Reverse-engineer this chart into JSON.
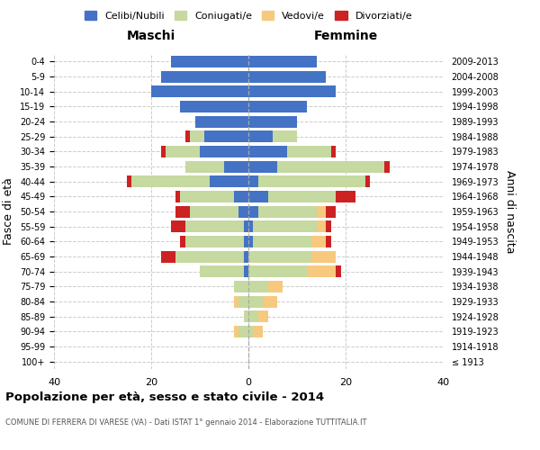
{
  "age_groups": [
    "100+",
    "95-99",
    "90-94",
    "85-89",
    "80-84",
    "75-79",
    "70-74",
    "65-69",
    "60-64",
    "55-59",
    "50-54",
    "45-49",
    "40-44",
    "35-39",
    "30-34",
    "25-29",
    "20-24",
    "15-19",
    "10-14",
    "5-9",
    "0-4"
  ],
  "birth_years": [
    "≤ 1913",
    "1914-1918",
    "1919-1923",
    "1924-1928",
    "1929-1933",
    "1934-1938",
    "1939-1943",
    "1944-1948",
    "1949-1953",
    "1954-1958",
    "1959-1963",
    "1964-1968",
    "1969-1973",
    "1974-1978",
    "1979-1983",
    "1984-1988",
    "1989-1993",
    "1994-1998",
    "1999-2003",
    "2004-2008",
    "2009-2013"
  ],
  "maschi": {
    "celibe": [
      0,
      0,
      0,
      0,
      0,
      0,
      1,
      1,
      1,
      1,
      2,
      3,
      8,
      5,
      10,
      9,
      11,
      14,
      20,
      18,
      16
    ],
    "coniugato": [
      0,
      0,
      2,
      1,
      2,
      3,
      9,
      14,
      12,
      12,
      10,
      11,
      16,
      8,
      7,
      3,
      0,
      0,
      0,
      0,
      0
    ],
    "vedovo": [
      0,
      0,
      1,
      0,
      1,
      0,
      0,
      0,
      0,
      0,
      0,
      0,
      0,
      0,
      0,
      0,
      0,
      0,
      0,
      0,
      0
    ],
    "divorziato": [
      0,
      0,
      0,
      0,
      0,
      0,
      0,
      3,
      1,
      3,
      3,
      1,
      1,
      0,
      1,
      1,
      0,
      0,
      0,
      0,
      0
    ]
  },
  "femmine": {
    "nubile": [
      0,
      0,
      0,
      0,
      0,
      0,
      0,
      0,
      1,
      1,
      2,
      4,
      2,
      6,
      8,
      5,
      10,
      12,
      18,
      16,
      14
    ],
    "coniugata": [
      0,
      0,
      1,
      2,
      3,
      4,
      12,
      13,
      12,
      13,
      12,
      14,
      22,
      22,
      9,
      5,
      0,
      0,
      0,
      0,
      0
    ],
    "vedova": [
      0,
      0,
      2,
      2,
      3,
      3,
      6,
      5,
      3,
      2,
      2,
      0,
      0,
      0,
      0,
      0,
      0,
      0,
      0,
      0,
      0
    ],
    "divorziata": [
      0,
      0,
      0,
      0,
      0,
      0,
      1,
      0,
      1,
      1,
      2,
      4,
      1,
      1,
      1,
      0,
      0,
      0,
      0,
      0,
      0
    ]
  },
  "colors": {
    "celibe": "#4472c4",
    "coniugato": "#c5d9a0",
    "vedovo": "#f7c97e",
    "divorziato": "#cc2222"
  },
  "xlim": 40,
  "title": "Popolazione per età, sesso e stato civile - 2014",
  "subtitle": "COMUNE DI FERRERA DI VARESE (VA) - Dati ISTAT 1° gennaio 2014 - Elaborazione TUTTITALIA.IT",
  "xlabel_maschi": "Maschi",
  "xlabel_femmine": "Femmine",
  "ylabel_left": "Fasce di età",
  "ylabel_right": "Anni di nascita",
  "legend_labels": [
    "Celibi/Nubili",
    "Coniugati/e",
    "Vedovi/e",
    "Divorziati/e"
  ],
  "bg_color": "#ffffff",
  "grid_color": "#cccccc"
}
